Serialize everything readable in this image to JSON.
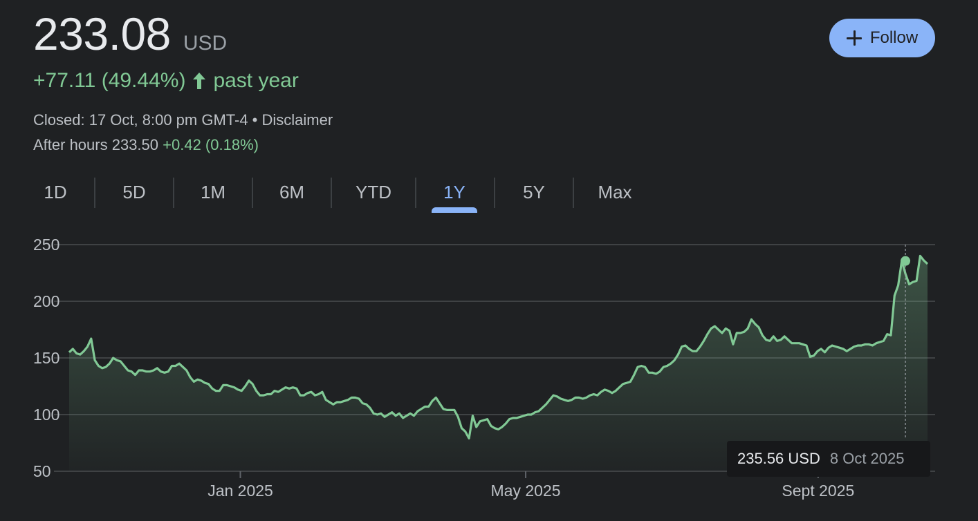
{
  "quote": {
    "price": "233.08",
    "currency": "USD",
    "change_text": "+77.11 (49.44%)",
    "period": "past year",
    "closed_text": "Closed: 17 Oct, 8:00 pm GMT-4 •",
    "disclaimer": "Disclaimer",
    "after_hours_label": "After hours 233.50",
    "after_hours_change": "+0.42 (0.18%)"
  },
  "follow_label": "Follow",
  "ranges": [
    "1D",
    "5D",
    "1M",
    "6M",
    "YTD",
    "1Y",
    "5Y",
    "Max"
  ],
  "active_range": "1Y",
  "colors": {
    "background": "#1f2123",
    "positive": "#81c995",
    "accent": "#8ab4f8"
  },
  "tooltip": {
    "price": "235.56 USD",
    "date": "8 Oct 2025"
  },
  "chart_data": {
    "type": "area",
    "x_start": "2024-10-21",
    "x_end": "2025-10-17",
    "x_ticks": [
      {
        "label": "Jan 2025",
        "date": "2025-01-01"
      },
      {
        "label": "May 2025",
        "date": "2025-05-01"
      },
      {
        "label": "Sept 2025",
        "date": "2025-09-01"
      }
    ],
    "y_ticks": [
      250,
      200,
      150,
      100,
      50
    ],
    "ylim": [
      50,
      250
    ],
    "grid": true,
    "highlight": {
      "date": "2025-10-08",
      "value": 235.56
    },
    "series": [
      {
        "values": [
          155,
          158,
          154,
          153,
          156,
          160,
          167,
          148,
          143,
          141,
          142,
          145,
          150,
          148,
          147,
          143,
          139,
          138,
          135,
          139,
          139,
          138,
          138,
          139,
          141,
          138,
          137,
          138,
          143,
          143,
          145,
          142,
          139,
          133,
          129,
          131,
          130,
          128,
          127,
          123,
          121,
          121,
          126,
          126,
          125,
          124,
          122,
          121,
          125,
          130,
          127,
          121,
          117,
          117,
          118,
          118,
          121,
          120,
          122,
          124,
          123,
          124,
          123,
          117,
          117,
          119,
          120,
          117,
          118,
          120,
          113,
          111,
          109,
          111,
          111,
          112,
          113,
          115,
          115,
          114,
          110,
          109,
          106,
          101,
          100,
          101,
          98,
          100,
          102,
          99,
          101,
          97,
          99,
          101,
          99,
          103,
          105,
          107,
          107,
          112,
          115,
          110,
          105,
          104,
          104,
          104,
          98,
          88,
          85,
          79,
          99,
          89,
          94,
          95,
          96,
          90,
          88,
          87,
          89,
          92,
          96,
          97,
          97,
          98,
          99,
          100,
          100,
          102,
          103,
          106,
          109,
          113,
          117,
          116,
          114,
          113,
          112,
          113,
          115,
          115,
          114,
          115,
          117,
          118,
          117,
          120,
          122,
          121,
          119,
          121,
          124,
          127,
          128,
          129,
          135,
          142,
          143,
          142,
          137,
          137,
          136,
          138,
          142,
          143,
          145,
          148,
          153,
          160,
          161,
          158,
          156,
          156,
          160,
          165,
          171,
          176,
          178,
          175,
          172,
          176,
          174,
          162,
          172,
          172,
          173,
          176,
          184,
          180,
          177,
          170,
          166,
          165,
          169,
          165,
          166,
          169,
          166,
          163,
          163,
          163,
          162,
          161,
          151,
          152,
          156,
          158,
          155,
          159,
          161,
          160,
          159,
          158,
          156,
          158,
          160,
          161,
          161,
          162,
          162,
          161,
          163,
          164,
          165,
          171,
          170,
          205,
          214,
          236,
          224,
          215,
          217,
          218,
          240,
          236,
          233
        ]
      }
    ]
  }
}
